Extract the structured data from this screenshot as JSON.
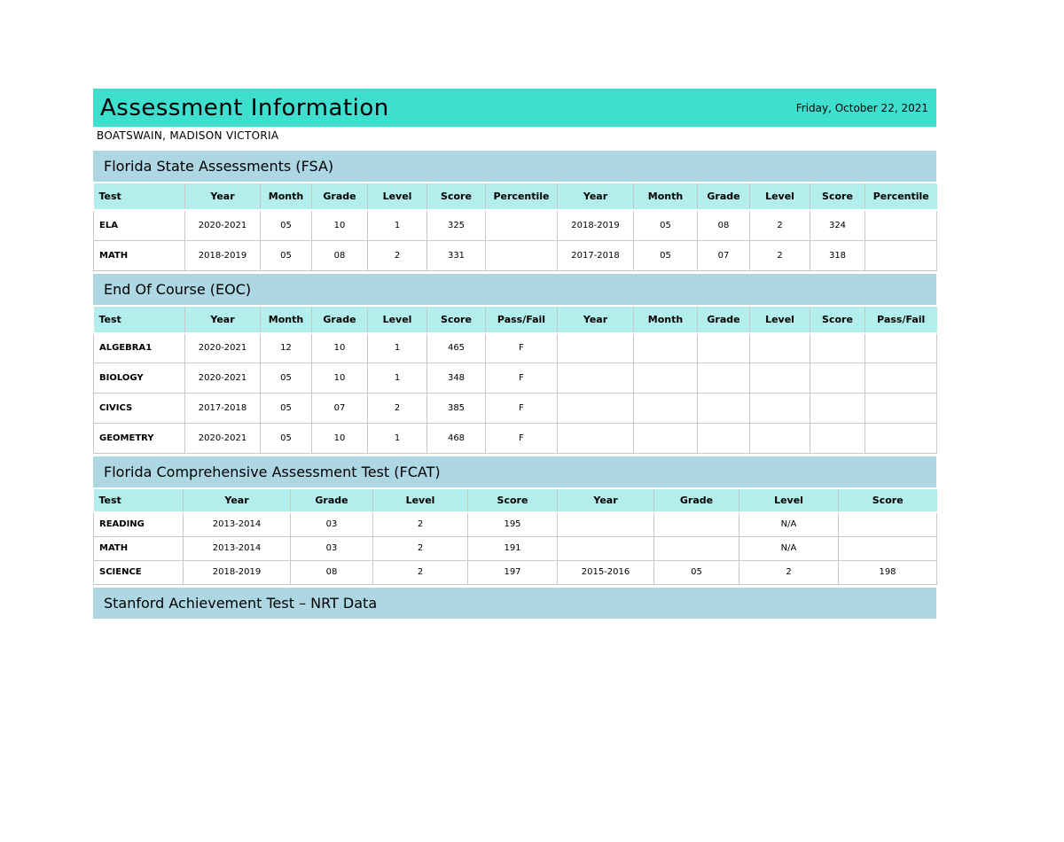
{
  "page": {
    "title": "Assessment Information",
    "date": "Friday, October 22, 2021",
    "student_name": "BOATSWAIN, MADISON VICTORIA"
  },
  "colors": {
    "header_bar": "#3EDFCE",
    "section_header": "#ACD7E3",
    "table_header_row": "#B3EDEC",
    "cell_border": "#C9C9C9"
  },
  "sections": {
    "fsa": {
      "title": "Florida State Assessments (FSA)",
      "columns": [
        "Test",
        "Year",
        "Month",
        "Grade",
        "Level",
        "Score",
        "Percentile",
        "Year",
        "Month",
        "Grade",
        "Level",
        "Score",
        "Percentile"
      ],
      "rows": [
        [
          "ELA",
          "2020-2021",
          "05",
          "10",
          "1",
          "325",
          "",
          "2018-2019",
          "05",
          "08",
          "2",
          "324",
          ""
        ],
        [
          "MATH",
          "2018-2019",
          "05",
          "08",
          "2",
          "331",
          "",
          "2017-2018",
          "05",
          "07",
          "2",
          "318",
          ""
        ]
      ]
    },
    "eoc": {
      "title": "End Of Course (EOC)",
      "columns": [
        "Test",
        "Year",
        "Month",
        "Grade",
        "Level",
        "Score",
        "Pass/Fail",
        "Year",
        "Month",
        "Grade",
        "Level",
        "Score",
        "Pass/Fail"
      ],
      "rows": [
        [
          "ALGEBRA1",
          "2020-2021",
          "12",
          "10",
          "1",
          "465",
          "F",
          "",
          "",
          "",
          "",
          "",
          ""
        ],
        [
          "BIOLOGY",
          "2020-2021",
          "05",
          "10",
          "1",
          "348",
          "F",
          "",
          "",
          "",
          "",
          "",
          ""
        ],
        [
          "CIVICS",
          "2017-2018",
          "05",
          "07",
          "2",
          "385",
          "F",
          "",
          "",
          "",
          "",
          "",
          ""
        ],
        [
          "GEOMETRY",
          "2020-2021",
          "05",
          "10",
          "1",
          "468",
          "F",
          "",
          "",
          "",
          "",
          "",
          ""
        ]
      ]
    },
    "fcat": {
      "title": "Florida Comprehensive Assessment Test (FCAT)",
      "columns": [
        "Test",
        "Year",
        "Grade",
        "Level",
        "Score",
        "Year",
        "Grade",
        "Level",
        "Score"
      ],
      "rows": [
        [
          "READING",
          "2013-2014",
          "03",
          "2",
          "195",
          "",
          "",
          "N/A",
          ""
        ],
        [
          "MATH",
          "2013-2014",
          "03",
          "2",
          "191",
          "",
          "",
          "N/A",
          ""
        ],
        [
          "SCIENCE",
          "2018-2019",
          "08",
          "2",
          "197",
          "2015-2016",
          "05",
          "2",
          "198"
        ]
      ]
    },
    "stanford": {
      "title": "Stanford Achievement Test – NRT Data"
    }
  }
}
